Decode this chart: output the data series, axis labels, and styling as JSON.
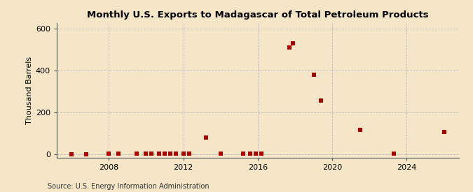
{
  "title": "Monthly U.S. Exports to Madagascar of Total Petroleum Products",
  "ylabel": "Thousand Barrels",
  "source": "Source: U.S. Energy Information Administration",
  "background_color": "#f5e6c8",
  "marker_color": "#aa0000",
  "xlim_start": 2005.2,
  "xlim_end": 2026.8,
  "ylim": [
    -15,
    625
  ],
  "yticks": [
    0,
    200,
    400,
    600
  ],
  "xticks": [
    2008,
    2012,
    2016,
    2020,
    2024
  ],
  "data_points": [
    [
      2006.0,
      1
    ],
    [
      2006.8,
      1
    ],
    [
      2008.0,
      2
    ],
    [
      2008.5,
      2
    ],
    [
      2009.5,
      2
    ],
    [
      2010.0,
      2
    ],
    [
      2010.3,
      2
    ],
    [
      2010.7,
      2
    ],
    [
      2011.0,
      2
    ],
    [
      2011.3,
      2
    ],
    [
      2011.6,
      2
    ],
    [
      2012.0,
      2
    ],
    [
      2012.3,
      2
    ],
    [
      2013.2,
      80
    ],
    [
      2014.0,
      2
    ],
    [
      2015.2,
      2
    ],
    [
      2015.6,
      2
    ],
    [
      2015.9,
      2
    ],
    [
      2016.2,
      2
    ],
    [
      2017.7,
      510
    ],
    [
      2017.9,
      530
    ],
    [
      2019.0,
      380
    ],
    [
      2019.4,
      255
    ],
    [
      2021.5,
      115
    ],
    [
      2023.3,
      2
    ],
    [
      2026.0,
      105
    ]
  ]
}
